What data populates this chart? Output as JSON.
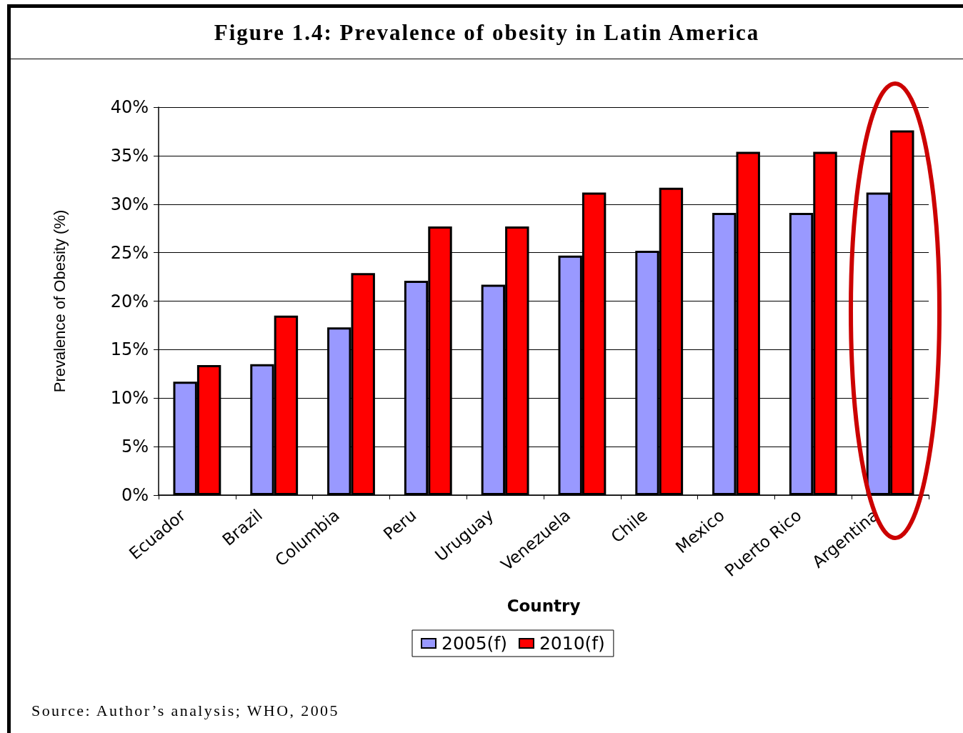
{
  "chart_data": {
    "type": "bar",
    "title": "Figure 1.4: Prevalence of obesity in Latin America",
    "xlabel": "Country",
    "ylabel": "Prevalence of Obesity (%)",
    "categories": [
      "Ecuador",
      "Brazil",
      "Columbia",
      "Peru",
      "Uruguay",
      "Venezuela",
      "Chile",
      "Mexico",
      "Puerto Rico",
      "Argentina"
    ],
    "series": [
      {
        "name": "2005(f)",
        "color": "#9999ff",
        "values": [
          11.7,
          13.5,
          17.3,
          22.1,
          21.7,
          24.7,
          25.2,
          29.1,
          29.1,
          31.2
        ]
      },
      {
        "name": "2010(f)",
        "color": "#ff0000",
        "values": [
          13.4,
          18.5,
          22.9,
          27.7,
          27.7,
          31.2,
          31.7,
          35.4,
          35.4,
          37.6
        ]
      }
    ],
    "ylim": [
      0,
      40
    ],
    "yticks": [
      {
        "value": 0,
        "label": "0%"
      },
      {
        "value": 5,
        "label": "5%"
      },
      {
        "value": 10,
        "label": "10%"
      },
      {
        "value": 15,
        "label": "15%"
      },
      {
        "value": 20,
        "label": "20%"
      },
      {
        "value": 25,
        "label": "25%"
      },
      {
        "value": 30,
        "label": "30%"
      },
      {
        "value": 35,
        "label": "35%"
      },
      {
        "value": 40,
        "label": "40%"
      }
    ],
    "grid": "y",
    "legend": "bottom",
    "annotations": [
      "Source: Author’s analysis; WHO, 2005"
    ]
  }
}
